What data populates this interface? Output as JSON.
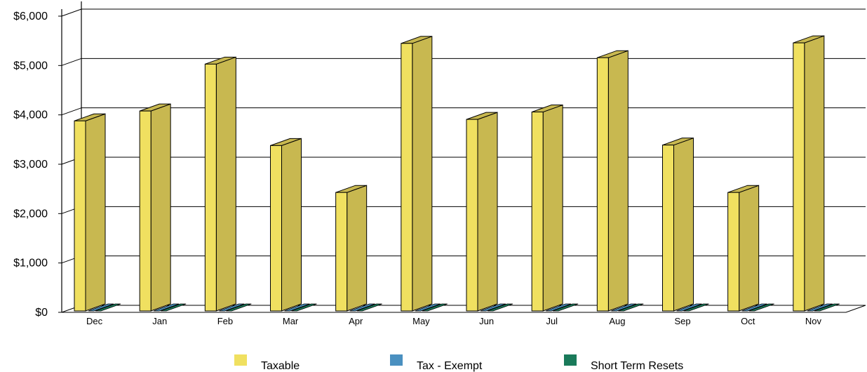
{
  "chart_data": {
    "type": "bar",
    "style": "3d",
    "categories": [
      "Dec",
      "Jan",
      "Feb",
      "Mar",
      "Apr",
      "May",
      "Jun",
      "Jul",
      "Aug",
      "Sep",
      "Oct",
      "Nov"
    ],
    "series": [
      {
        "name": "Taxable",
        "color": "#f0e060",
        "side_color": "#c8b850",
        "values": [
          3850,
          4050,
          5000,
          3350,
          2400,
          5420,
          3880,
          4030,
          5130,
          3360,
          2400,
          5430
        ]
      },
      {
        "name": "Tax - Exempt",
        "color": "#4a90c0",
        "side_color": "#2c6a90",
        "values": [
          0,
          0,
          0,
          0,
          0,
          0,
          0,
          0,
          0,
          0,
          0,
          0
        ]
      },
      {
        "name": "Short Term Resets",
        "color": "#1a7a5a",
        "side_color": "#0f5a40",
        "values": [
          0,
          0,
          0,
          0,
          0,
          0,
          0,
          0,
          0,
          0,
          0,
          0
        ]
      }
    ],
    "y_ticks": [
      "$0",
      "$1,000",
      "$2,000",
      "$3,000",
      "$4,000",
      "$5,000",
      "$6,000"
    ],
    "ylim": [
      0,
      6000
    ],
    "grid": true,
    "legend_position": "bottom"
  }
}
